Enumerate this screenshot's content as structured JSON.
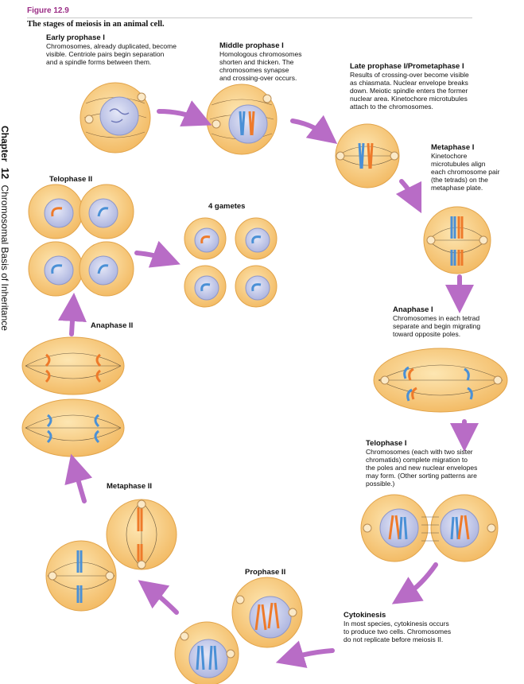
{
  "figure": {
    "label": "Figure 12.9",
    "caption": "The stages of meiosis in an animal cell."
  },
  "sidebar": {
    "chapter_word": "Chapter",
    "chapter_number": "12",
    "chapter_title": "Chromosomal Basis of Inheritance"
  },
  "stages": {
    "early_prophase": {
      "title": "Early prophase I",
      "desc": "Chromosomes, already duplicated, become\nvisible. Centriole pairs begin separation\nand a spindle forms between them."
    },
    "middle_prophase": {
      "title": "Middle prophase I",
      "desc": "Homologous chromosomes\nshorten and thicken. The\nchromosomes synapse\nand crossing-over occurs."
    },
    "late_prophase": {
      "title": "Late prophase I/Prometaphase I",
      "desc": "Results of crossing-over become visible\nas chiasmata. Nuclear envelope breaks\ndown. Meiotic spindle enters the former\nnuclear area. Kinetochore microtubules\nattach to the chromosomes."
    },
    "metaphase_1": {
      "title": "Metaphase I",
      "desc": "Kinetochore\nmicrotubules align\neach chromosome pair\n(the tetrads) on the\nmetaphase plate."
    },
    "anaphase_1": {
      "title": "Anaphase I",
      "desc": "Chromosomes in each tetrad\nseparate and begin migrating\ntoward opposite poles."
    },
    "telophase_1": {
      "title": "Telophase I",
      "desc": "Chromosomes (each with two sister\nchromatids) complete migration to\nthe poles and new nuclear envelopes\nmay form. (Other sorting patterns are\npossible.)"
    },
    "cytokinesis": {
      "title": "Cytokinesis",
      "desc": "In most species, cytokinesis occurs\nto produce two cells. Chromosomes\ndo not replicate before meiosis II."
    },
    "prophase_2": {
      "title": "Prophase II"
    },
    "metaphase_2": {
      "title": "Metaphase II"
    },
    "anaphase_2": {
      "title": "Anaphase II"
    },
    "telophase_2": {
      "title": "Telophase II"
    },
    "gametes": {
      "title": "4 gametes"
    }
  },
  "colors": {
    "cell_fill": "#f7c97a",
    "cell_edge": "#e2a44a",
    "nucleus_fill": "#c7ccec",
    "nucleus_edge": "#8e97c9",
    "chrom_blue": "#4a90d6",
    "chrom_orange": "#ee7a2a",
    "arrow": "#b86cc6",
    "accent": "#9b2d86"
  }
}
